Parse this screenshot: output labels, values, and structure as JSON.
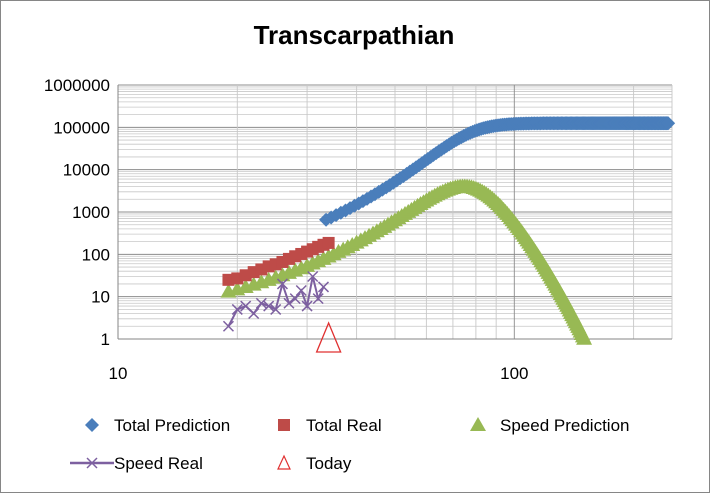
{
  "chart_data": {
    "type": "scatter",
    "title": "Transcarpathian",
    "x_scale": "log",
    "y_scale": "log",
    "xlim": [
      10,
      250
    ],
    "ylim": [
      1,
      1000000
    ],
    "x_ticks": [
      "10",
      "100"
    ],
    "y_ticks": [
      "1",
      "10",
      "100",
      "1000",
      "10000",
      "100000",
      "1000000"
    ],
    "grid": true,
    "legend_position": "bottom",
    "colors": {
      "total_prediction": "#4a7ebb",
      "total_real": "#be4b48",
      "speed_prediction": "#98b954",
      "speed_real": "#7d60a0",
      "today": "#e03030"
    },
    "series": [
      {
        "name": "Total Prediction",
        "marker": "diamond",
        "logistic": {
          "K": 125000,
          "r": 0.128,
          "t0": 74.5,
          "x_start": 33.5,
          "x_end": 245
        }
      },
      {
        "name": "Total Real",
        "marker": "square",
        "points": [
          [
            19,
            25
          ],
          [
            20,
            27
          ],
          [
            21,
            32
          ],
          [
            22,
            38
          ],
          [
            23,
            44
          ],
          [
            24,
            52
          ],
          [
            25,
            58
          ],
          [
            26,
            66
          ],
          [
            27,
            78
          ],
          [
            28,
            90
          ],
          [
            29,
            102
          ],
          [
            30,
            116
          ],
          [
            31,
            132
          ],
          [
            32,
            150
          ],
          [
            33,
            168
          ],
          [
            34,
            186
          ]
        ]
      },
      {
        "name": "Speed Prediction",
        "marker": "triangle",
        "logistic_derivative": {
          "K": 125000,
          "r": 0.128,
          "t0": 74.5,
          "x_start": 19,
          "x_end": 245
        }
      },
      {
        "name": "Speed Real",
        "marker": "x",
        "points": [
          [
            19,
            2
          ],
          [
            20,
            5
          ],
          [
            21,
            6
          ],
          [
            22,
            4
          ],
          [
            23,
            7
          ],
          [
            24,
            6
          ],
          [
            25,
            5
          ],
          [
            26,
            20
          ],
          [
            27,
            7
          ],
          [
            28,
            9
          ],
          [
            29,
            14
          ],
          [
            30,
            6
          ],
          [
            31,
            30
          ],
          [
            32,
            9
          ],
          [
            33,
            17
          ]
        ]
      },
      {
        "name": "Today",
        "marker": "open-triangle",
        "points": [
          [
            34,
            1
          ]
        ]
      }
    ]
  }
}
